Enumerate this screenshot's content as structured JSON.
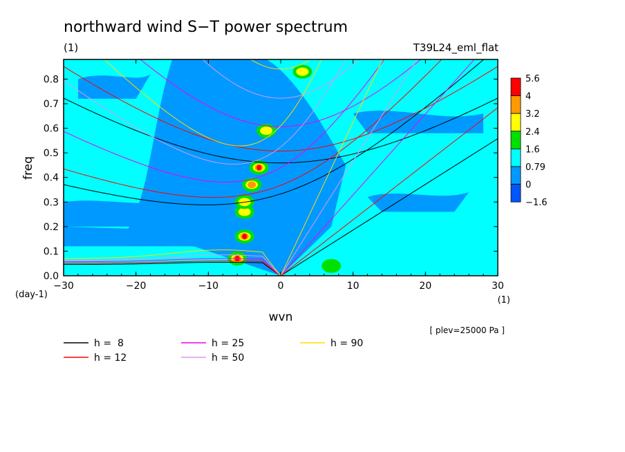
{
  "chart_data": {
    "type": "heatmap",
    "title": "northward wind S−T power spectrum",
    "subtitle": "(1)",
    "run_label": "T39L24_eml_flat",
    "xlabel": "wvn",
    "ylabel": "freq",
    "x_unit": "(1)",
    "y_unit": "(day-1)",
    "level_note": "[ plev=25000 Pa ]",
    "xlim": [
      -30,
      30
    ],
    "ylim": [
      0,
      0.88
    ],
    "x_ticks": [
      -30,
      -20,
      -10,
      0,
      10,
      20,
      30
    ],
    "x_tick_labels": [
      "−30",
      "−20",
      "−10",
      "0",
      "10",
      "20",
      "30"
    ],
    "y_ticks": [
      0.0,
      0.1,
      0.2,
      0.3,
      0.4,
      0.5,
      0.6,
      0.7,
      0.8
    ],
    "y_tick_labels": [
      "0.0",
      "0.1",
      "0.2",
      "0.3",
      "0.4",
      "0.5",
      "0.6",
      "0.7",
      "0.8"
    ],
    "colorbar": {
      "labels": [
        "5.6",
        "4",
        "3.2",
        "2.4",
        "1.6",
        "0.79",
        "0",
        "−1.6"
      ],
      "colors": [
        "#ff0000",
        "#ff9900",
        "#ffff00",
        "#00e000",
        "#00ffff",
        "#0099ff",
        "#0055ff"
      ]
    },
    "background_levels": {
      "low": "#0099ff",
      "mid": "#00ffff"
    },
    "hotspots": [
      {
        "wvn": -6,
        "freq": 0.07,
        "level": "4"
      },
      {
        "wvn": -5,
        "freq": 0.16,
        "level": "4"
      },
      {
        "wvn": -5,
        "freq": 0.26,
        "level": "2.4"
      },
      {
        "wvn": -5,
        "freq": 0.3,
        "level": "2.4"
      },
      {
        "wvn": -4,
        "freq": 0.37,
        "level": "3.2"
      },
      {
        "wvn": -3,
        "freq": 0.44,
        "level": "5.6"
      },
      {
        "wvn": -2,
        "freq": 0.59,
        "level": "2.4"
      },
      {
        "wvn": 3,
        "freq": 0.83,
        "level": "2.4"
      },
      {
        "wvn": 7,
        "freq": 0.04,
        "level": "1.6"
      }
    ],
    "dispersion_curves": {
      "legend": [
        {
          "label": "h =  8",
          "color": "#000000"
        },
        {
          "label": "h = 12",
          "color": "#ff0000"
        },
        {
          "label": "h = 25",
          "color": "#ee00ee"
        },
        {
          "label": "h = 50",
          "color": "#dd99ee"
        },
        {
          "label": "h = 90",
          "color": "#ffdd00"
        }
      ],
      "kelvin_slope": [
        0.0186,
        0.0228,
        0.0329,
        0.0466,
        0.0625
      ],
      "mrg_freq_at_0": [
        0.333,
        0.368,
        0.44,
        0.524,
        0.61
      ],
      "rossby_n1_asymptote": [
        0.046,
        0.051,
        0.057,
        0.062,
        0.07
      ],
      "rossby_n1_hump": [
        0.055,
        0.06,
        0.07,
        0.085,
        0.105
      ]
    }
  }
}
